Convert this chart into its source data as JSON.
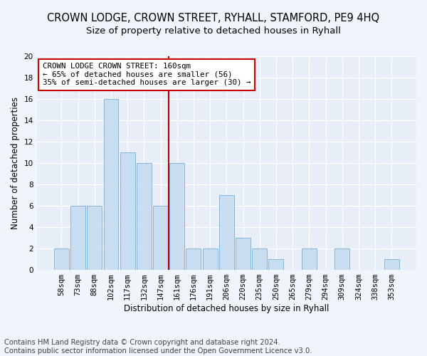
{
  "title": "CROWN LODGE, CROWN STREET, RYHALL, STAMFORD, PE9 4HQ",
  "subtitle": "Size of property relative to detached houses in Ryhall",
  "xlabel": "Distribution of detached houses by size in Ryhall",
  "ylabel": "Number of detached properties",
  "categories": [
    "58sqm",
    "73sqm",
    "88sqm",
    "102sqm",
    "117sqm",
    "132sqm",
    "147sqm",
    "161sqm",
    "176sqm",
    "191sqm",
    "206sqm",
    "220sqm",
    "235sqm",
    "250sqm",
    "265sqm",
    "279sqm",
    "294sqm",
    "309sqm",
    "324sqm",
    "338sqm",
    "353sqm"
  ],
  "values": [
    2,
    6,
    6,
    16,
    11,
    10,
    6,
    10,
    2,
    2,
    7,
    3,
    2,
    1,
    0,
    2,
    0,
    2,
    0,
    0,
    1
  ],
  "bar_color": "#c9ddf0",
  "bar_edge_color": "#7aadd4",
  "vline_pos": 6.5,
  "vline_color": "#aa0000",
  "annotation_text": "CROWN LODGE CROWN STREET: 160sqm\n← 65% of detached houses are smaller (56)\n35% of semi-detached houses are larger (30) →",
  "annotation_box_color": "#cc0000",
  "ylim": [
    0,
    20
  ],
  "yticks": [
    0,
    2,
    4,
    6,
    8,
    10,
    12,
    14,
    16,
    18,
    20
  ],
  "footer": "Contains HM Land Registry data © Crown copyright and database right 2024.\nContains public sector information licensed under the Open Government Licence v3.0.",
  "fig_bg_color": "#f0f4fb",
  "ax_bg_color": "#e8eef8",
  "grid_color": "#ffffff",
  "title_fontsize": 10.5,
  "subtitle_fontsize": 9.5,
  "axis_label_fontsize": 8.5,
  "tick_fontsize": 7.5,
  "annotation_fontsize": 7.8,
  "footer_fontsize": 7.2
}
